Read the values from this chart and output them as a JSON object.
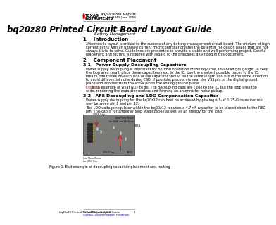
{
  "title": "bq20z80 Printed Circuit Board Layout Guide",
  "subtitle": "Battery Management",
  "header_right_line1": "Application Report",
  "header_right_line2": "SLUA443–June 2008",
  "section1_title": "1    Introduction",
  "section1_body": "Attention to layout is critical to the success of any battery management circuit board. The mixture of high\ncurrent paths with an ultralow current microcontroller creates the potential for design issues that are not\nalways trivial to solve. Guidelines are presented to provide a stable and well performing project. Careful\nplacement and routing is required with regard to the principles described in this document.",
  "section2_title": "2    Component Placement",
  "section21_title": "2.1   Power Supply Decoupling Capacitors",
  "section21_body": "Power supply decoupling is important for optimal operation of the bq20z80 advanced gas gauge. To keep\nthe loop area small, place these capacitors next to the IC. Use the shortest possible traces to the IC.\nIdeally, the traces on each side of the capacitor should be the same length and run in the same direction\nto avoid differential noise during ESD. If possible, place a via near the VSS pin to the digital ground\nplane and another from the VSSA pin to the analog ground plane.",
  "section21_body2_prefix": "Figure 1",
  "section21_body2_suffix": " is an example of what NOT to do. The decoupling caps are close to the IC, but the loop area too\nwide, rendering the capacitor useless and forming an antenna for noise pickup.",
  "section22_title": "2.2   AFE Decoupling and LDO Compensation Capacitor",
  "section22_body1": "Power supply decoupling for the bq20z12 can best be achieved by placing a 1-μF 1 25-Ω capacitor mid\nway between pin 1 and pin 12.",
  "section22_body2": "The LDO voltage regulator within the bq20z12 requires a 4.7-nF capacitor to be placed close to the REG\npin. This cap is for amplifier loop stabilization as well as an energy for the load.",
  "figure_caption": "Figure 1. Bad example of decoupling capacitor placement and routing",
  "footer_left": "SLUA443–June 2008",
  "footer_link": "Submit Documentation Feedback",
  "footer_right": "bq20z80 Printed Circuit Board Layout Guide                1",
  "bg_color": "#ffffff",
  "text_color": "#000000",
  "accent_color": "#c00000",
  "link_color": "#0000cc",
  "header_separator_color": "#888888",
  "footer_separator_color": "#888888",
  "pcb_bg": "#7a7a7a",
  "pcb_border": "#333333",
  "chip_color": "#2a2a2a",
  "gold_color": "#d4a017",
  "cap_color": "#c8c8c8"
}
